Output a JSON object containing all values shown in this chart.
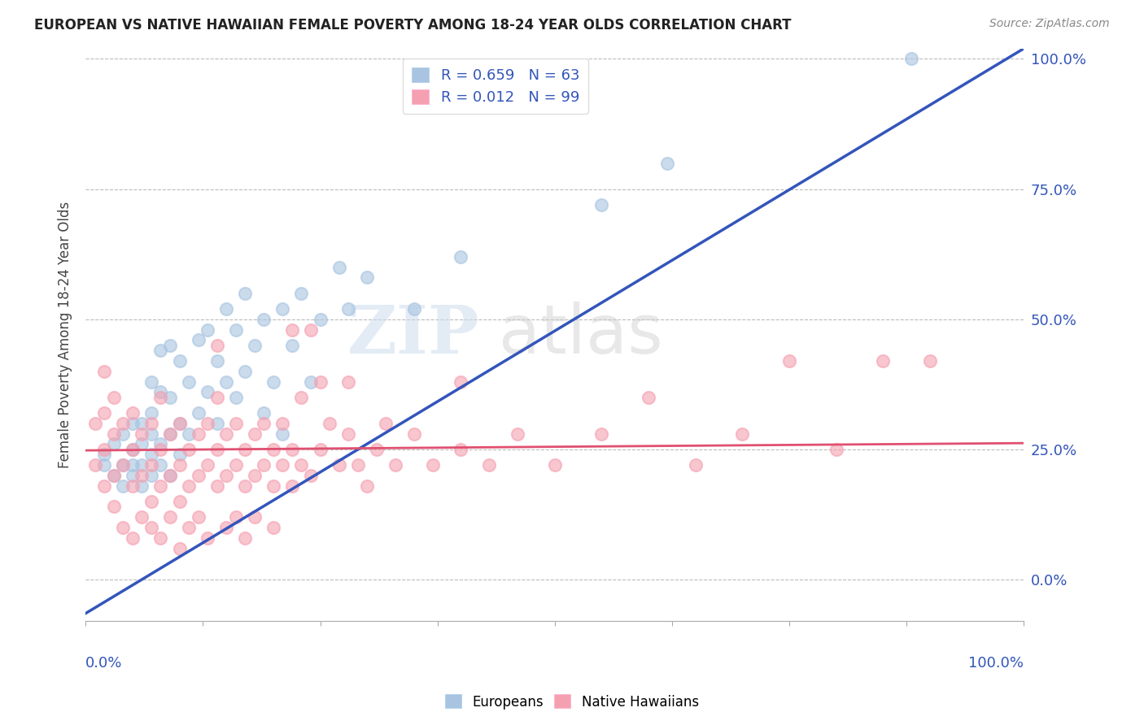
{
  "title": "EUROPEAN VS NATIVE HAWAIIAN FEMALE POVERTY AMONG 18-24 YEAR OLDS CORRELATION CHART",
  "source": "Source: ZipAtlas.com",
  "ylabel": "Female Poverty Among 18-24 Year Olds",
  "legend_european_r": "R = 0.659",
  "legend_european_n": "N = 63",
  "legend_hawaiian_r": "R = 0.012",
  "legend_hawaiian_n": "N = 99",
  "european_color": "#A8C4E0",
  "hawaiian_color": "#F4A0B0",
  "line_european_color": "#3355BB",
  "line_hawaiian_color": "#E05070",
  "watermark_zip": "ZIP",
  "watermark_atlas": "atlas",
  "background_color": "#FFFFFF",
  "xlim": [
    0.0,
    1.0
  ],
  "ylim": [
    -0.08,
    1.02
  ],
  "yticks": [
    0.0,
    0.25,
    0.5,
    0.75,
    1.0
  ],
  "right_tick_labels": [
    "0.0%",
    "25.0%",
    "50.0%",
    "75.0%",
    "100.0%"
  ],
  "eu_line_x": [
    0.0,
    1.0
  ],
  "eu_line_y": [
    -0.065,
    1.02
  ],
  "hw_line_x": [
    0.0,
    1.0
  ],
  "hw_line_y": [
    0.248,
    0.262
  ],
  "european_points": [
    [
      0.02,
      0.22
    ],
    [
      0.02,
      0.24
    ],
    [
      0.03,
      0.2
    ],
    [
      0.03,
      0.26
    ],
    [
      0.04,
      0.18
    ],
    [
      0.04,
      0.22
    ],
    [
      0.04,
      0.28
    ],
    [
      0.05,
      0.2
    ],
    [
      0.05,
      0.22
    ],
    [
      0.05,
      0.25
    ],
    [
      0.05,
      0.3
    ],
    [
      0.06,
      0.18
    ],
    [
      0.06,
      0.22
    ],
    [
      0.06,
      0.26
    ],
    [
      0.06,
      0.3
    ],
    [
      0.07,
      0.2
    ],
    [
      0.07,
      0.24
    ],
    [
      0.07,
      0.28
    ],
    [
      0.07,
      0.32
    ],
    [
      0.07,
      0.38
    ],
    [
      0.08,
      0.22
    ],
    [
      0.08,
      0.26
    ],
    [
      0.08,
      0.36
    ],
    [
      0.08,
      0.44
    ],
    [
      0.09,
      0.2
    ],
    [
      0.09,
      0.28
    ],
    [
      0.09,
      0.35
    ],
    [
      0.09,
      0.45
    ],
    [
      0.1,
      0.24
    ],
    [
      0.1,
      0.3
    ],
    [
      0.1,
      0.42
    ],
    [
      0.11,
      0.28
    ],
    [
      0.11,
      0.38
    ],
    [
      0.12,
      0.32
    ],
    [
      0.12,
      0.46
    ],
    [
      0.13,
      0.36
    ],
    [
      0.13,
      0.48
    ],
    [
      0.14,
      0.3
    ],
    [
      0.14,
      0.42
    ],
    [
      0.15,
      0.38
    ],
    [
      0.15,
      0.52
    ],
    [
      0.16,
      0.35
    ],
    [
      0.16,
      0.48
    ],
    [
      0.17,
      0.4
    ],
    [
      0.17,
      0.55
    ],
    [
      0.18,
      0.45
    ],
    [
      0.19,
      0.32
    ],
    [
      0.19,
      0.5
    ],
    [
      0.2,
      0.38
    ],
    [
      0.21,
      0.28
    ],
    [
      0.21,
      0.52
    ],
    [
      0.22,
      0.45
    ],
    [
      0.23,
      0.55
    ],
    [
      0.24,
      0.38
    ],
    [
      0.25,
      0.5
    ],
    [
      0.27,
      0.6
    ],
    [
      0.28,
      0.52
    ],
    [
      0.3,
      0.58
    ],
    [
      0.35,
      0.52
    ],
    [
      0.4,
      0.62
    ],
    [
      0.55,
      0.72
    ],
    [
      0.62,
      0.8
    ],
    [
      0.88,
      1.0
    ]
  ],
  "hawaiian_points": [
    [
      0.01,
      0.22
    ],
    [
      0.01,
      0.3
    ],
    [
      0.02,
      0.18
    ],
    [
      0.02,
      0.25
    ],
    [
      0.02,
      0.32
    ],
    [
      0.02,
      0.4
    ],
    [
      0.03,
      0.2
    ],
    [
      0.03,
      0.28
    ],
    [
      0.03,
      0.35
    ],
    [
      0.03,
      0.14
    ],
    [
      0.04,
      0.22
    ],
    [
      0.04,
      0.3
    ],
    [
      0.04,
      0.1
    ],
    [
      0.05,
      0.18
    ],
    [
      0.05,
      0.25
    ],
    [
      0.05,
      0.32
    ],
    [
      0.05,
      0.08
    ],
    [
      0.06,
      0.2
    ],
    [
      0.06,
      0.28
    ],
    [
      0.06,
      0.12
    ],
    [
      0.07,
      0.22
    ],
    [
      0.07,
      0.3
    ],
    [
      0.07,
      0.15
    ],
    [
      0.07,
      0.1
    ],
    [
      0.08,
      0.18
    ],
    [
      0.08,
      0.25
    ],
    [
      0.08,
      0.35
    ],
    [
      0.08,
      0.08
    ],
    [
      0.09,
      0.2
    ],
    [
      0.09,
      0.28
    ],
    [
      0.09,
      0.12
    ],
    [
      0.1,
      0.22
    ],
    [
      0.1,
      0.3
    ],
    [
      0.1,
      0.15
    ],
    [
      0.1,
      0.06
    ],
    [
      0.11,
      0.18
    ],
    [
      0.11,
      0.25
    ],
    [
      0.11,
      0.1
    ],
    [
      0.12,
      0.2
    ],
    [
      0.12,
      0.28
    ],
    [
      0.12,
      0.12
    ],
    [
      0.13,
      0.22
    ],
    [
      0.13,
      0.3
    ],
    [
      0.13,
      0.08
    ],
    [
      0.14,
      0.18
    ],
    [
      0.14,
      0.25
    ],
    [
      0.14,
      0.35
    ],
    [
      0.14,
      0.45
    ],
    [
      0.15,
      0.2
    ],
    [
      0.15,
      0.28
    ],
    [
      0.15,
      0.1
    ],
    [
      0.16,
      0.22
    ],
    [
      0.16,
      0.3
    ],
    [
      0.16,
      0.12
    ],
    [
      0.17,
      0.18
    ],
    [
      0.17,
      0.25
    ],
    [
      0.17,
      0.08
    ],
    [
      0.18,
      0.2
    ],
    [
      0.18,
      0.28
    ],
    [
      0.18,
      0.12
    ],
    [
      0.19,
      0.22
    ],
    [
      0.19,
      0.3
    ],
    [
      0.2,
      0.18
    ],
    [
      0.2,
      0.25
    ],
    [
      0.2,
      0.1
    ],
    [
      0.21,
      0.22
    ],
    [
      0.21,
      0.3
    ],
    [
      0.22,
      0.18
    ],
    [
      0.22,
      0.25
    ],
    [
      0.22,
      0.48
    ],
    [
      0.23,
      0.22
    ],
    [
      0.23,
      0.35
    ],
    [
      0.24,
      0.2
    ],
    [
      0.24,
      0.48
    ],
    [
      0.25,
      0.25
    ],
    [
      0.25,
      0.38
    ],
    [
      0.26,
      0.3
    ],
    [
      0.27,
      0.22
    ],
    [
      0.28,
      0.28
    ],
    [
      0.28,
      0.38
    ],
    [
      0.29,
      0.22
    ],
    [
      0.3,
      0.18
    ],
    [
      0.31,
      0.25
    ],
    [
      0.32,
      0.3
    ],
    [
      0.33,
      0.22
    ],
    [
      0.35,
      0.28
    ],
    [
      0.37,
      0.22
    ],
    [
      0.4,
      0.25
    ],
    [
      0.4,
      0.38
    ],
    [
      0.43,
      0.22
    ],
    [
      0.46,
      0.28
    ],
    [
      0.5,
      0.22
    ],
    [
      0.55,
      0.28
    ],
    [
      0.6,
      0.35
    ],
    [
      0.65,
      0.22
    ],
    [
      0.7,
      0.28
    ],
    [
      0.75,
      0.42
    ],
    [
      0.8,
      0.25
    ],
    [
      0.85,
      0.42
    ],
    [
      0.9,
      0.42
    ]
  ]
}
